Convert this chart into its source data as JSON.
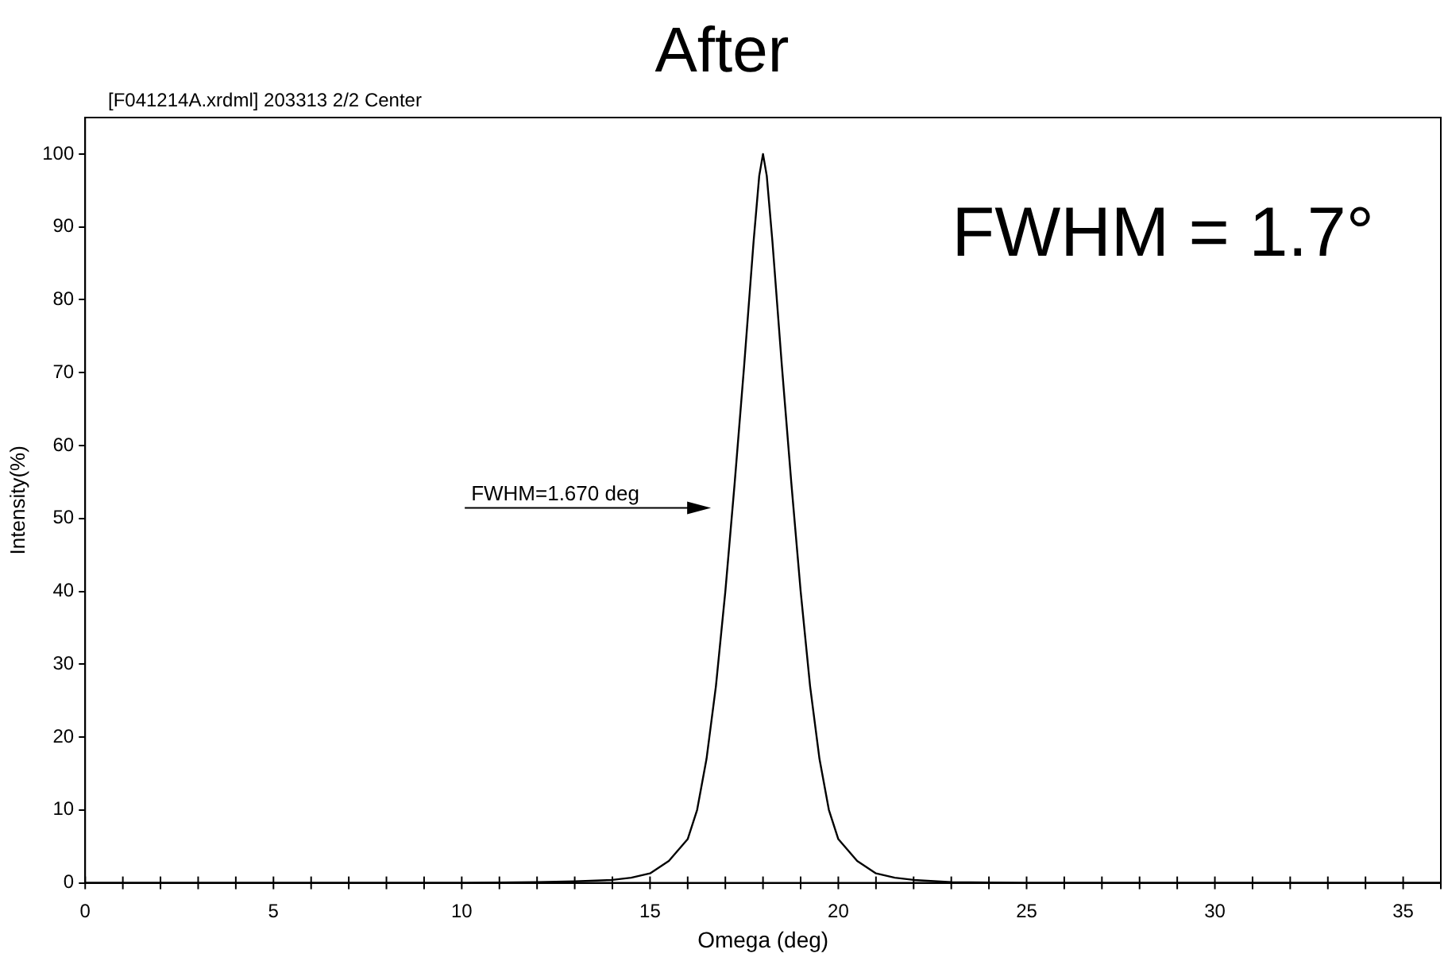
{
  "chart_data": {
    "type": "line",
    "title": "After",
    "subtitle": "[F041214A.xrdml] 203313 2/2 Center",
    "xlabel": "Omega (deg)",
    "ylabel": "Intensity(%)",
    "series": [
      {
        "color": "#000000",
        "x": [
          0,
          5,
          10,
          12,
          13,
          14,
          14.5,
          15,
          15.5,
          16,
          16.25,
          16.5,
          16.75,
          17,
          17.25,
          17.5,
          17.75,
          17.9,
          18,
          18.1,
          18.25,
          18.5,
          18.75,
          19,
          19.25,
          19.5,
          19.75,
          20,
          20.5,
          21,
          21.5,
          22,
          23,
          25,
          30,
          36
        ],
        "values": [
          0,
          0,
          0,
          0.1,
          0.2,
          0.4,
          0.7,
          1.3,
          3,
          6,
          10,
          17,
          27,
          40,
          55,
          71,
          88,
          97,
          100,
          97,
          88,
          71,
          55,
          40,
          27,
          17,
          10,
          6,
          3,
          1.3,
          0.7,
          0.4,
          0.1,
          0,
          0,
          0
        ]
      }
    ],
    "xlim": [
      0,
      36
    ],
    "xticks": [
      0,
      5,
      10,
      15,
      20,
      25,
      30,
      35
    ],
    "ylim": [
      0,
      105
    ],
    "yticks": [
      0,
      10,
      20,
      30,
      40,
      50,
      60,
      70,
      80,
      90,
      100
    ],
    "grid": false,
    "legend": false,
    "marker": "none",
    "line_style": "solid",
    "annotations": [
      "FWHM = 1.7°",
      "FWHM=1.670 deg"
    ]
  }
}
